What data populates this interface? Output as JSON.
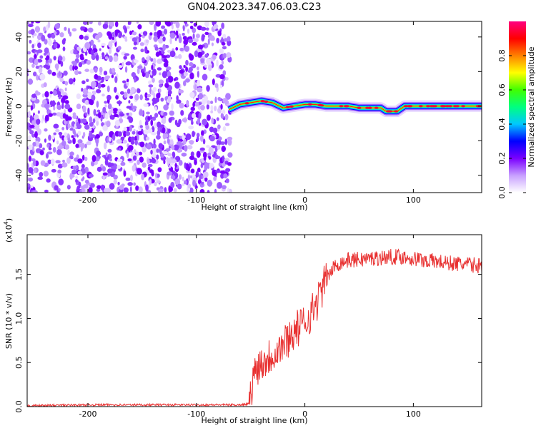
{
  "title": "GN04.2023.347.06.03.C23",
  "chart_data": [
    {
      "type": "heatmap",
      "xlabel": "Height of straight line (km)",
      "ylabel": "Frequency (Hz)",
      "xlim": [
        -256,
        163
      ],
      "ylim": [
        -50,
        49
      ],
      "xticks": [
        -200,
        -100,
        0,
        100
      ],
      "xtick_labels": [
        "-200",
        "-100",
        "0",
        "100"
      ],
      "yticks": [
        -40,
        -20,
        0,
        20,
        40
      ],
      "ytick_labels": [
        "-40",
        "-20",
        "0",
        "20",
        "40"
      ],
      "noise_region_x": [
        -256,
        -70
      ],
      "signal_track": {
        "x": [
          -70,
          -60,
          -50,
          -40,
          -30,
          -20,
          -10,
          0,
          10,
          20,
          30,
          40,
          50,
          60,
          70,
          75,
          85,
          92,
          100,
          110,
          120,
          130,
          140,
          150,
          163
        ],
        "frequency_hz": [
          -2,
          1,
          2,
          3,
          2,
          -1,
          0,
          1,
          1,
          0,
          0,
          0,
          -1,
          -1,
          -1,
          -3,
          -3,
          0,
          0,
          0,
          0,
          0,
          0,
          0,
          0
        ]
      },
      "colorbar": {
        "label": "Normalized spectral amplitude",
        "range": [
          0,
          1
        ],
        "ticks": [
          0.0,
          0.2,
          0.4,
          0.6,
          0.8
        ],
        "tick_labels": [
          "0.0",
          "0.2",
          "0.4",
          "0.6",
          "0.8"
        ],
        "colors": [
          "#ffffff",
          "#c8a0ff",
          "#7a00ff",
          "#0000ff",
          "#00c8ff",
          "#00ff80",
          "#40ff00",
          "#ffff00",
          "#ff8000",
          "#ff0000",
          "#ff0080"
        ]
      },
      "grid": false
    },
    {
      "type": "line",
      "xlabel": "Height of straight line (km)",
      "ylabel": "SNR (10 * v/v)",
      "multiplier_label": "(x10",
      "multiplier_exp": "4",
      "xlim": [
        -256,
        163
      ],
      "ylim": [
        0,
        1.95
      ],
      "xticks": [
        -200,
        -100,
        0,
        100
      ],
      "xtick_labels": [
        "-200",
        "-100",
        "0",
        "100"
      ],
      "yticks": [
        0.0,
        0.5,
        1.0,
        1.5
      ],
      "ytick_labels": [
        "0.0",
        "0.5",
        "1.0",
        "1.5"
      ],
      "series": [
        {
          "color": "#e83030",
          "x": [
            -256,
            -200,
            -150,
            -100,
            -60,
            -52,
            -50,
            -48,
            -45,
            -40,
            -35,
            -30,
            -25,
            -20,
            -15,
            -10,
            -5,
            0,
            5,
            10,
            15,
            20,
            25,
            30,
            40,
            50,
            60,
            70,
            80,
            90,
            100,
            110,
            120,
            130,
            140,
            150,
            163
          ],
          "values": [
            0.01,
            0.02,
            0.02,
            0.02,
            0.02,
            0.03,
            0.1,
            0.3,
            0.45,
            0.5,
            0.55,
            0.6,
            0.65,
            0.7,
            0.78,
            0.85,
            0.9,
            0.95,
            1.05,
            1.15,
            1.3,
            1.45,
            1.55,
            1.62,
            1.66,
            1.67,
            1.68,
            1.69,
            1.7,
            1.7,
            1.68,
            1.66,
            1.65,
            1.63,
            1.62,
            1.61,
            1.6
          ]
        }
      ],
      "grid": false
    }
  ]
}
